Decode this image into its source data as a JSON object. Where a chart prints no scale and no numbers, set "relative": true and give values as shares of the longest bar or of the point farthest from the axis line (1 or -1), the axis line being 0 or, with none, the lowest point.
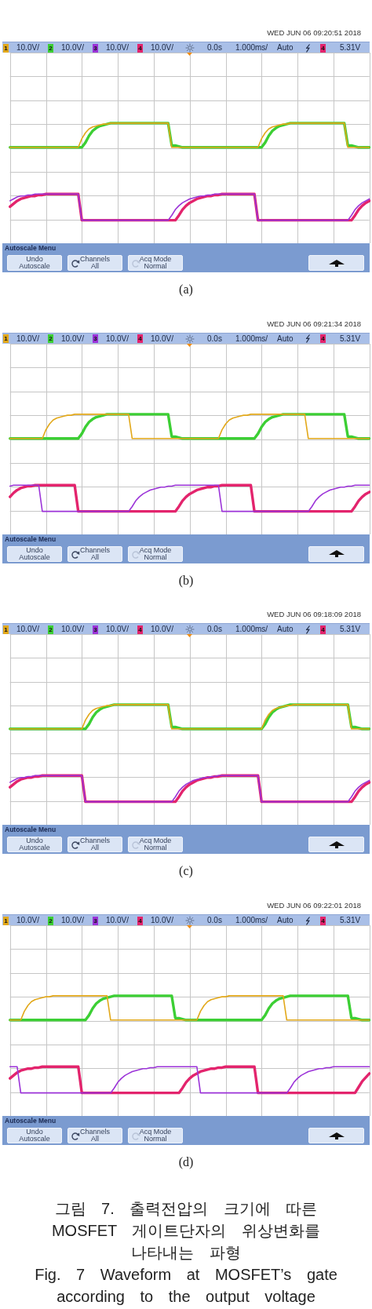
{
  "chart_data": [
    {
      "type": "line",
      "relative": true,
      "grid": true,
      "marker": "none",
      "tick_labels": false,
      "categories": [
        null,
        null,
        null,
        null,
        null,
        null,
        null,
        null,
        null,
        null,
        null,
        null,
        null,
        null,
        null,
        null,
        null,
        null,
        null,
        null,
        null,
        null,
        null,
        null,
        null,
        null,
        null,
        null,
        null,
        null,
        null,
        null,
        null,
        null,
        null,
        null,
        null,
        null,
        null,
        null,
        null,
        null,
        null,
        null,
        null,
        null,
        null,
        null,
        null,
        null,
        null,
        null,
        null,
        null,
        null,
        null,
        null,
        null,
        null,
        null,
        null,
        null,
        null,
        null,
        null,
        null,
        null,
        null,
        null,
        null,
        null,
        null,
        null,
        null,
        null,
        null,
        null,
        null,
        null,
        null,
        null,
        null,
        null,
        null,
        null,
        null,
        null,
        null,
        null,
        null,
        null,
        null,
        null,
        null,
        null,
        null,
        null,
        null,
        null,
        null,
        null
      ],
      "series": [
        {
          "color": "#e2a81a",
          "values": [
            0.75,
            0.75,
            0.75,
            0.75,
            0.75,
            0.75,
            0.75,
            0.75,
            0.75,
            0.75,
            0.75,
            0.75,
            0.75,
            0.75,
            0.75,
            0.75,
            0.75,
            0.75,
            0.75,
            0.75,
            0.84,
            0.9,
            0.94,
            0.96,
            0.97,
            0.98,
            0.99,
            0.99,
            1,
            1,
            1,
            1,
            1,
            1,
            1,
            1,
            1,
            1,
            1,
            1,
            1,
            1,
            1,
            1,
            1,
            0.75,
            0.75,
            0.75,
            0.75,
            0.75,
            0.75,
            0.75,
            0.75,
            0.75,
            0.75,
            0.75,
            0.75,
            0.75,
            0.75,
            0.75,
            0.75,
            0.75,
            0.75,
            0.75,
            0.75,
            0.75,
            0.75,
            0.75,
            0.75,
            0.75,
            0.84,
            0.9,
            0.94,
            0.96,
            0.97,
            0.98,
            0.99,
            0.99,
            1,
            1,
            1,
            1,
            1,
            1,
            1,
            1,
            1,
            1,
            1,
            1,
            1,
            1,
            1,
            1,
            0.75,
            0.75,
            0.75,
            0.75,
            0.75,
            0.75,
            0.75
          ]
        },
        {
          "color": "#3ccf34",
          "values": [
            0.75,
            0.75,
            0.75,
            0.75,
            0.75,
            0.75,
            0.75,
            0.75,
            0.75,
            0.75,
            0.75,
            0.75,
            0.75,
            0.75,
            0.75,
            0.75,
            0.75,
            0.75,
            0.75,
            0.75,
            0.75,
            0.8,
            0.87,
            0.92,
            0.95,
            0.97,
            0.98,
            0.99,
            1,
            1,
            1,
            1,
            1,
            1,
            1,
            1,
            1,
            1,
            1,
            1,
            1,
            1,
            1,
            1,
            1,
            0.77,
            0.77,
            0.76,
            0.75,
            0.75,
            0.75,
            0.75,
            0.75,
            0.75,
            0.75,
            0.75,
            0.75,
            0.75,
            0.75,
            0.75,
            0.75,
            0.75,
            0.75,
            0.75,
            0.75,
            0.75,
            0.75,
            0.75,
            0.75,
            0.75,
            0.75,
            0.8,
            0.87,
            0.92,
            0.95,
            0.97,
            0.98,
            0.99,
            1,
            1,
            1,
            1,
            1,
            1,
            1,
            1,
            1,
            1,
            1,
            1,
            1,
            1,
            1,
            1,
            0.77,
            0.77,
            0.76,
            0.75,
            0.75,
            0.75,
            0.75
          ]
        },
        {
          "color": "#9b33d8",
          "values": [
            0.2,
            0.22,
            0.24,
            0.25,
            0.25,
            0.26,
            0.26,
            0.27,
            0.27,
            0.27,
            0.27,
            0.27,
            0.27,
            0.27,
            0.27,
            0.27,
            0.27,
            0.27,
            0.27,
            0.27,
            0,
            0,
            0,
            0,
            0,
            0,
            0,
            0,
            0,
            0,
            0,
            0,
            0,
            0,
            0,
            0,
            0,
            0,
            0,
            0,
            0,
            0,
            0,
            0,
            0,
            0.05,
            0.11,
            0.15,
            0.18,
            0.2,
            0.22,
            0.23,
            0.24,
            0.25,
            0.25,
            0.26,
            0.26,
            0.27,
            0.27,
            0.27,
            0.27,
            0.27,
            0.27,
            0.27,
            0.27,
            0.27,
            0.27,
            0.27,
            0.27,
            0,
            0,
            0,
            0,
            0,
            0,
            0,
            0,
            0,
            0,
            0,
            0,
            0,
            0,
            0,
            0,
            0,
            0,
            0,
            0,
            0,
            0,
            0,
            0,
            0,
            0,
            0.05,
            0.11,
            0.15,
            0.18,
            0.2,
            0.22
          ]
        },
        {
          "color": "#e3246d",
          "values": [
            0.14,
            0.17,
            0.2,
            0.22,
            0.23,
            0.24,
            0.25,
            0.25,
            0.26,
            0.26,
            0.27,
            0.27,
            0.27,
            0.27,
            0.27,
            0.27,
            0.27,
            0.27,
            0.27,
            0.27,
            0,
            0,
            0,
            0,
            0,
            0,
            0,
            0,
            0,
            0,
            0,
            0,
            0,
            0,
            0,
            0,
            0,
            0,
            0,
            0,
            0,
            0,
            0,
            0,
            0,
            0,
            0,
            0.05,
            0.11,
            0.15,
            0.18,
            0.2,
            0.22,
            0.23,
            0.24,
            0.25,
            0.25,
            0.26,
            0.26,
            0.27,
            0.27,
            0.27,
            0.27,
            0.27,
            0.27,
            0.27,
            0.27,
            0.27,
            0.27,
            0,
            0,
            0,
            0,
            0,
            0,
            0,
            0,
            0,
            0,
            0,
            0,
            0,
            0,
            0,
            0,
            0,
            0,
            0,
            0,
            0,
            0,
            0,
            0,
            0,
            0,
            0,
            0.05,
            0.11,
            0.15,
            0.18,
            0.2
          ]
        }
      ],
      "annotations": [
        "WED JUN 06 09:20:51 2018",
        "1",
        "10.0V/",
        "2",
        "10.0V/",
        "3",
        "10.0V/",
        "4",
        "10.0V/",
        "0.0s",
        "1.000ms/",
        "Auto",
        "4",
        "5.31V",
        "Autoscale Menu",
        "Undo Autoscale",
        "Channels All",
        "Acq Mode Normal",
        "(a)"
      ]
    },
    {
      "type": "line",
      "relative": true,
      "grid": true,
      "marker": "none",
      "tick_labels": false,
      "categories": [
        null,
        null,
        null,
        null,
        null,
        null,
        null,
        null,
        null,
        null,
        null,
        null,
        null,
        null,
        null,
        null,
        null,
        null,
        null,
        null,
        null,
        null,
        null,
        null,
        null,
        null,
        null,
        null,
        null,
        null,
        null,
        null,
        null,
        null,
        null,
        null,
        null,
        null,
        null,
        null,
        null,
        null,
        null,
        null,
        null,
        null,
        null,
        null,
        null,
        null,
        null,
        null,
        null,
        null,
        null,
        null,
        null,
        null,
        null,
        null,
        null,
        null,
        null,
        null,
        null,
        null,
        null,
        null,
        null,
        null,
        null,
        null,
        null,
        null,
        null,
        null,
        null,
        null,
        null,
        null,
        null,
        null,
        null,
        null,
        null,
        null,
        null,
        null,
        null,
        null,
        null,
        null,
        null,
        null,
        null,
        null,
        null,
        null,
        null,
        null,
        null
      ],
      "series": [
        {
          "color": "#e2a81a",
          "values": [
            0.75,
            0.75,
            0.75,
            0.75,
            0.75,
            0.75,
            0.75,
            0.75,
            0.75,
            0.75,
            0.84,
            0.9,
            0.94,
            0.96,
            0.97,
            0.98,
            0.99,
            0.99,
            1,
            1,
            1,
            1,
            1,
            1,
            1,
            1,
            1,
            1,
            1,
            1,
            1,
            1,
            1,
            1,
            0.75,
            0.75,
            0.75,
            0.75,
            0.75,
            0.75,
            0.75,
            0.75,
            0.75,
            0.75,
            0.75,
            0.75,
            0.75,
            0.75,
            0.75,
            0.75,
            0.75,
            0.75,
            0.75,
            0.75,
            0.75,
            0.75,
            0.75,
            0.75,
            0.75,
            0.84,
            0.9,
            0.94,
            0.96,
            0.97,
            0.98,
            0.99,
            0.99,
            1,
            1,
            1,
            1,
            1,
            1,
            1,
            1,
            1,
            1,
            1,
            1,
            1,
            1,
            1,
            1,
            0.75,
            0.75,
            0.75,
            0.75,
            0.75,
            0.75,
            0.75,
            0.75,
            0.75,
            0.75,
            0.75,
            0.75,
            0.75,
            0.75,
            0.75,
            0.75,
            0.75,
            0.75
          ]
        },
        {
          "color": "#3ccf34",
          "values": [
            0.75,
            0.75,
            0.75,
            0.75,
            0.75,
            0.75,
            0.75,
            0.75,
            0.75,
            0.75,
            0.75,
            0.75,
            0.75,
            0.75,
            0.75,
            0.75,
            0.75,
            0.75,
            0.75,
            0.75,
            0.8,
            0.87,
            0.92,
            0.95,
            0.97,
            0.98,
            0.99,
            1,
            1,
            1,
            1,
            1,
            1,
            1,
            1,
            1,
            1,
            1,
            1,
            1,
            1,
            1,
            1,
            1,
            1,
            0.77,
            0.77,
            0.76,
            0.75,
            0.75,
            0.75,
            0.75,
            0.75,
            0.75,
            0.75,
            0.75,
            0.75,
            0.75,
            0.75,
            0.75,
            0.75,
            0.75,
            0.75,
            0.75,
            0.75,
            0.75,
            0.75,
            0.75,
            0.75,
            0.8,
            0.87,
            0.92,
            0.95,
            0.97,
            0.98,
            0.99,
            1,
            1,
            1,
            1,
            1,
            1,
            1,
            1,
            1,
            1,
            1,
            1,
            1,
            1,
            1,
            1,
            1,
            1,
            0.77,
            0.77,
            0.76,
            0.75,
            0.75,
            0.75,
            0.75
          ]
        },
        {
          "color": "#9b33d8",
          "values": [
            0.26,
            0.27,
            0.27,
            0.27,
            0.27,
            0.27,
            0.27,
            0.27,
            0.27,
            0,
            0,
            0,
            0,
            0,
            0,
            0,
            0,
            0,
            0,
            0,
            0,
            0,
            0,
            0,
            0,
            0,
            0,
            0,
            0,
            0,
            0,
            0,
            0,
            0,
            0.05,
            0.11,
            0.15,
            0.18,
            0.2,
            0.22,
            0.23,
            0.24,
            0.25,
            0.25,
            0.26,
            0.26,
            0.27,
            0.27,
            0.27,
            0.27,
            0.27,
            0.27,
            0.27,
            0.27,
            0.27,
            0.27,
            0.27,
            0.27,
            0.27,
            0,
            0,
            0,
            0,
            0,
            0,
            0,
            0,
            0,
            0,
            0,
            0,
            0,
            0,
            0,
            0,
            0,
            0,
            0,
            0,
            0,
            0,
            0,
            0,
            0,
            0.05,
            0.11,
            0.15,
            0.18,
            0.2,
            0.22,
            0.23,
            0.24,
            0.25,
            0.25,
            0.26,
            0.26,
            0.27,
            0.27,
            0.27,
            0.27,
            0.27
          ]
        },
        {
          "color": "#e3246d",
          "values": [
            0.15,
            0.19,
            0.22,
            0.24,
            0.25,
            0.26,
            0.26,
            0.27,
            0.27,
            0.27,
            0.27,
            0.27,
            0.27,
            0.27,
            0.27,
            0.27,
            0.27,
            0.27,
            0.27,
            0,
            0,
            0,
            0,
            0,
            0,
            0,
            0,
            0,
            0,
            0,
            0,
            0,
            0,
            0,
            0,
            0,
            0,
            0,
            0,
            0,
            0,
            0,
            0,
            0,
            0,
            0,
            0,
            0.05,
            0.11,
            0.15,
            0.18,
            0.2,
            0.22,
            0.23,
            0.24,
            0.25,
            0.25,
            0.26,
            0.26,
            0.27,
            0.27,
            0.27,
            0.27,
            0.27,
            0.27,
            0.27,
            0.27,
            0.27,
            0,
            0,
            0,
            0,
            0,
            0,
            0,
            0,
            0,
            0,
            0,
            0,
            0,
            0,
            0,
            0,
            0,
            0,
            0,
            0,
            0,
            0,
            0,
            0,
            0,
            0,
            0,
            0,
            0.05,
            0.11,
            0.15,
            0.18,
            0.2
          ]
        }
      ],
      "annotations": [
        "WED JUN 06 09:21:34 2018",
        "1",
        "10.0V/",
        "2",
        "10.0V/",
        "3",
        "10.0V/",
        "4",
        "10.0V/",
        "0.0s",
        "1.000ms/",
        "Auto",
        "4",
        "5.31V",
        "Autoscale Menu",
        "Undo Autoscale",
        "Channels All",
        "Acq Mode Normal",
        "(b)"
      ]
    },
    {
      "type": "line",
      "relative": true,
      "grid": true,
      "marker": "none",
      "tick_labels": false,
      "categories": [
        null,
        null,
        null,
        null,
        null,
        null,
        null,
        null,
        null,
        null,
        null,
        null,
        null,
        null,
        null,
        null,
        null,
        null,
        null,
        null,
        null,
        null,
        null,
        null,
        null,
        null,
        null,
        null,
        null,
        null,
        null,
        null,
        null,
        null,
        null,
        null,
        null,
        null,
        null,
        null,
        null,
        null,
        null,
        null,
        null,
        null,
        null,
        null,
        null,
        null,
        null,
        null,
        null,
        null,
        null,
        null,
        null,
        null,
        null,
        null,
        null,
        null,
        null,
        null,
        null,
        null,
        null,
        null,
        null,
        null,
        null,
        null,
        null,
        null,
        null,
        null,
        null,
        null,
        null,
        null,
        null,
        null,
        null,
        null,
        null,
        null,
        null,
        null,
        null,
        null,
        null,
        null,
        null,
        null,
        null,
        null,
        null,
        null,
        null,
        null,
        null
      ],
      "series": [
        {
          "color": "#e2a81a",
          "values": [
            0.75,
            0.75,
            0.75,
            0.75,
            0.75,
            0.75,
            0.75,
            0.75,
            0.75,
            0.75,
            0.75,
            0.75,
            0.75,
            0.75,
            0.75,
            0.75,
            0.75,
            0.75,
            0.75,
            0.75,
            0.75,
            0.84,
            0.9,
            0.94,
            0.96,
            0.97,
            0.98,
            0.99,
            0.99,
            1,
            1,
            1,
            1,
            1,
            1,
            1,
            1,
            1,
            1,
            1,
            1,
            1,
            1,
            1,
            1,
            0.75,
            0.75,
            0.75,
            0.75,
            0.75,
            0.75,
            0.75,
            0.75,
            0.75,
            0.75,
            0.75,
            0.75,
            0.75,
            0.75,
            0.75,
            0.75,
            0.75,
            0.75,
            0.75,
            0.75,
            0.75,
            0.75,
            0.75,
            0.75,
            0.75,
            0.75,
            0.84,
            0.9,
            0.94,
            0.96,
            0.97,
            0.98,
            0.99,
            0.99,
            1,
            1,
            1,
            1,
            1,
            1,
            1,
            1,
            1,
            1,
            1,
            1,
            1,
            1,
            1,
            1,
            0.75,
            0.75,
            0.75,
            0.75,
            0.75,
            0.75
          ]
        },
        {
          "color": "#3ccf34",
          "values": [
            0.75,
            0.75,
            0.75,
            0.75,
            0.75,
            0.75,
            0.75,
            0.75,
            0.75,
            0.75,
            0.75,
            0.75,
            0.75,
            0.75,
            0.75,
            0.75,
            0.75,
            0.75,
            0.75,
            0.75,
            0.75,
            0.75,
            0.8,
            0.87,
            0.92,
            0.95,
            0.97,
            0.98,
            0.99,
            1,
            1,
            1,
            1,
            1,
            1,
            1,
            1,
            1,
            1,
            1,
            1,
            1,
            1,
            1,
            1,
            0.77,
            0.77,
            0.76,
            0.75,
            0.75,
            0.75,
            0.75,
            0.75,
            0.75,
            0.75,
            0.75,
            0.75,
            0.75,
            0.75,
            0.75,
            0.75,
            0.75,
            0.75,
            0.75,
            0.75,
            0.75,
            0.75,
            0.75,
            0.75,
            0.75,
            0.75,
            0.8,
            0.87,
            0.92,
            0.95,
            0.97,
            0.98,
            0.99,
            1,
            1,
            1,
            1,
            1,
            1,
            1,
            1,
            1,
            1,
            1,
            1,
            1,
            1,
            1,
            1,
            1,
            0.77,
            0.77,
            0.76,
            0.75,
            0.75,
            0.75
          ]
        },
        {
          "color": "#9b33d8",
          "values": [
            0.2,
            0.22,
            0.24,
            0.25,
            0.25,
            0.26,
            0.26,
            0.27,
            0.27,
            0.27,
            0.27,
            0.27,
            0.27,
            0.27,
            0.27,
            0.27,
            0.27,
            0.27,
            0.27,
            0.27,
            0.27,
            0,
            0,
            0,
            0,
            0,
            0,
            0,
            0,
            0,
            0,
            0,
            0,
            0,
            0,
            0,
            0,
            0,
            0,
            0,
            0,
            0,
            0,
            0,
            0,
            0,
            0.05,
            0.11,
            0.15,
            0.18,
            0.2,
            0.22,
            0.23,
            0.24,
            0.25,
            0.25,
            0.26,
            0.26,
            0.27,
            0.27,
            0.27,
            0.27,
            0.27,
            0.27,
            0.27,
            0.27,
            0.27,
            0.27,
            0.27,
            0.27,
            0,
            0,
            0,
            0,
            0,
            0,
            0,
            0,
            0,
            0,
            0,
            0,
            0,
            0,
            0,
            0,
            0,
            0,
            0,
            0,
            0,
            0,
            0,
            0,
            0,
            0.05,
            0.11,
            0.15,
            0.18,
            0.2,
            0.22
          ]
        },
        {
          "color": "#e3246d",
          "values": [
            0.15,
            0.18,
            0.21,
            0.23,
            0.24,
            0.25,
            0.25,
            0.26,
            0.26,
            0.27,
            0.27,
            0.27,
            0.27,
            0.27,
            0.27,
            0.27,
            0.27,
            0.27,
            0.27,
            0.27,
            0.27,
            0,
            0,
            0,
            0,
            0,
            0,
            0,
            0,
            0,
            0,
            0,
            0,
            0,
            0,
            0,
            0,
            0,
            0,
            0,
            0,
            0,
            0,
            0,
            0,
            0,
            0,
            0.05,
            0.11,
            0.15,
            0.18,
            0.2,
            0.22,
            0.23,
            0.24,
            0.25,
            0.25,
            0.26,
            0.26,
            0.27,
            0.27,
            0.27,
            0.27,
            0.27,
            0.27,
            0.27,
            0.27,
            0.27,
            0.27,
            0.27,
            0,
            0,
            0,
            0,
            0,
            0,
            0,
            0,
            0,
            0,
            0,
            0,
            0,
            0,
            0,
            0,
            0,
            0,
            0,
            0,
            0,
            0,
            0,
            0,
            0,
            0,
            0.05,
            0.11,
            0.15,
            0.18,
            0.2
          ]
        }
      ],
      "annotations": [
        "WED JUN 06 09:18:09 2018",
        "1",
        "10.0V/",
        "2",
        "10.0V/",
        "3",
        "10.0V/",
        "4",
        "10.0V/",
        "0.0s",
        "1.000ms/",
        "Auto",
        "4",
        "5.31V",
        "Autoscale Menu",
        "Undo Autoscale",
        "Channels All",
        "Acq Mode Normal",
        "(c)"
      ]
    },
    {
      "type": "line",
      "relative": true,
      "grid": true,
      "marker": "none",
      "tick_labels": false,
      "categories": [
        null,
        null,
        null,
        null,
        null,
        null,
        null,
        null,
        null,
        null,
        null,
        null,
        null,
        null,
        null,
        null,
        null,
        null,
        null,
        null,
        null,
        null,
        null,
        null,
        null,
        null,
        null,
        null,
        null,
        null,
        null,
        null,
        null,
        null,
        null,
        null,
        null,
        null,
        null,
        null,
        null,
        null,
        null,
        null,
        null,
        null,
        null,
        null,
        null,
        null,
        null,
        null,
        null,
        null,
        null,
        null,
        null,
        null,
        null,
        null,
        null,
        null,
        null,
        null,
        null,
        null,
        null,
        null,
        null,
        null,
        null,
        null,
        null,
        null,
        null,
        null,
        null,
        null,
        null,
        null,
        null,
        null,
        null,
        null,
        null,
        null,
        null,
        null,
        null,
        null,
        null,
        null,
        null,
        null,
        null,
        null,
        null,
        null,
        null,
        null,
        null
      ],
      "series": [
        {
          "color": "#e2a81a",
          "values": [
            0.75,
            0.75,
            0.75,
            0.75,
            0.84,
            0.9,
            0.94,
            0.96,
            0.97,
            0.98,
            0.99,
            0.99,
            1,
            1,
            1,
            1,
            1,
            1,
            1,
            1,
            1,
            1,
            1,
            1,
            1,
            1,
            1,
            1,
            0.75,
            0.75,
            0.75,
            0.75,
            0.75,
            0.75,
            0.75,
            0.75,
            0.75,
            0.75,
            0.75,
            0.75,
            0.75,
            0.75,
            0.75,
            0.75,
            0.75,
            0.75,
            0.75,
            0.75,
            0.75,
            0.75,
            0.75,
            0.75,
            0.75,
            0.84,
            0.9,
            0.94,
            0.96,
            0.97,
            0.98,
            0.99,
            0.99,
            1,
            1,
            1,
            1,
            1,
            1,
            1,
            1,
            1,
            1,
            1,
            1,
            1,
            1,
            1,
            1,
            0.75,
            0.75,
            0.75,
            0.75,
            0.75,
            0.75,
            0.75,
            0.75,
            0.75,
            0.75,
            0.75,
            0.75,
            0.75,
            0.75,
            0.75,
            0.75,
            0.75,
            0.75,
            0.75,
            0.75,
            0.75,
            0.75,
            0.75,
            0.75
          ]
        },
        {
          "color": "#3ccf34",
          "values": [
            0.75,
            0.75,
            0.75,
            0.75,
            0.75,
            0.75,
            0.75,
            0.75,
            0.75,
            0.75,
            0.75,
            0.75,
            0.75,
            0.75,
            0.75,
            0.75,
            0.75,
            0.75,
            0.75,
            0.75,
            0.75,
            0.75,
            0.8,
            0.87,
            0.92,
            0.95,
            0.97,
            0.98,
            0.99,
            1,
            1,
            1,
            1,
            1,
            1,
            1,
            1,
            1,
            1,
            1,
            1,
            1,
            1,
            1,
            1,
            1,
            0.77,
            0.77,
            0.76,
            0.75,
            0.75,
            0.75,
            0.75,
            0.75,
            0.75,
            0.75,
            0.75,
            0.75,
            0.75,
            0.75,
            0.75,
            0.75,
            0.75,
            0.75,
            0.75,
            0.75,
            0.75,
            0.75,
            0.75,
            0.75,
            0.75,
            0.8,
            0.87,
            0.92,
            0.95,
            0.97,
            0.98,
            0.99,
            1,
            1,
            1,
            1,
            1,
            1,
            1,
            1,
            1,
            1,
            1,
            1,
            1,
            1,
            1,
            1,
            1,
            0.77,
            0.77,
            0.76,
            0.75,
            0.75,
            0.75
          ]
        },
        {
          "color": "#9b33d8",
          "values": [
            0.27,
            0.27,
            0.27,
            0,
            0,
            0,
            0,
            0,
            0,
            0,
            0,
            0,
            0,
            0,
            0,
            0,
            0,
            0,
            0,
            0,
            0,
            0,
            0,
            0,
            0,
            0,
            0,
            0,
            0,
            0.05,
            0.11,
            0.15,
            0.18,
            0.2,
            0.22,
            0.23,
            0.24,
            0.25,
            0.25,
            0.26,
            0.26,
            0.27,
            0.27,
            0.27,
            0.27,
            0.27,
            0.27,
            0.27,
            0.27,
            0.27,
            0.27,
            0.27,
            0.27,
            0,
            0,
            0,
            0,
            0,
            0,
            0,
            0,
            0,
            0,
            0,
            0,
            0,
            0,
            0,
            0,
            0,
            0,
            0,
            0,
            0,
            0,
            0,
            0,
            0,
            0.05,
            0.11,
            0.15,
            0.18,
            0.2,
            0.22,
            0.23,
            0.24,
            0.25,
            0.25,
            0.26,
            0.26,
            0.27,
            0.27,
            0.27,
            0.27,
            0.27,
            0.27,
            0.27,
            0.27,
            0.27,
            0.27,
            0.27
          ]
        },
        {
          "color": "#e3246d",
          "values": [
            0.15,
            0.18,
            0.21,
            0.23,
            0.24,
            0.25,
            0.25,
            0.26,
            0.26,
            0.27,
            0.27,
            0.27,
            0.27,
            0.27,
            0.27,
            0.27,
            0.27,
            0.27,
            0.27,
            0.27,
            0,
            0,
            0,
            0,
            0,
            0,
            0,
            0,
            0,
            0,
            0,
            0,
            0,
            0,
            0,
            0,
            0,
            0,
            0,
            0,
            0,
            0,
            0,
            0,
            0,
            0,
            0,
            0,
            0.05,
            0.11,
            0.15,
            0.18,
            0.2,
            0.22,
            0.23,
            0.24,
            0.25,
            0.25,
            0.26,
            0.26,
            0.27,
            0.27,
            0.27,
            0.27,
            0.27,
            0.27,
            0.27,
            0.27,
            0.27,
            0,
            0,
            0,
            0,
            0,
            0,
            0,
            0,
            0,
            0,
            0,
            0,
            0,
            0,
            0,
            0,
            0,
            0,
            0,
            0,
            0,
            0,
            0,
            0,
            0,
            0,
            0,
            0,
            0.06,
            0.12,
            0.16,
            0.2
          ]
        }
      ],
      "annotations": [
        "WED JUN 06 09:22:01 2018",
        "1",
        "10.0V/",
        "2",
        "10.0V/",
        "3",
        "10.0V/",
        "4",
        "10.0V/",
        "0.0s",
        "1.000ms/",
        "Auto",
        "4",
        "5.31V",
        "Autoscale Menu",
        "Undo Autoscale",
        "Channels All",
        "Acq Mode Normal",
        "(d)",
        "그림 7. 출력전압의 크기에 따른 MOSFET 게이트단자의 위상변화를 나타내는 파형",
        "Fig. 7 Waveform at MOSFET’s gate according to the output voltage"
      ]
    }
  ]
}
